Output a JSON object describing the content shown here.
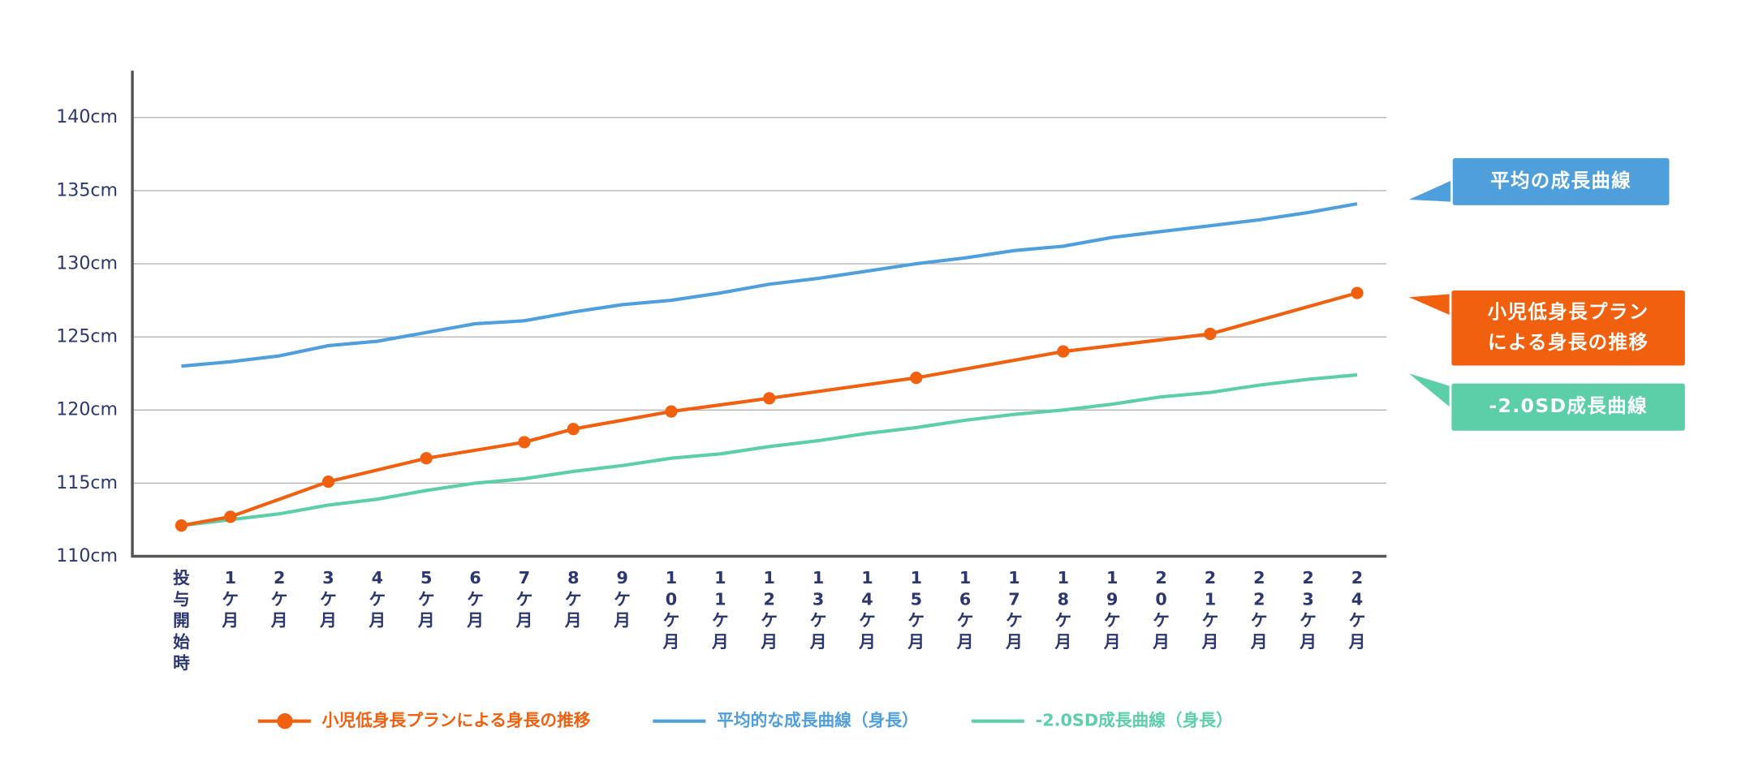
{
  "chart_data": {
    "type": "line",
    "categories": [
      "投与開始時",
      "1ケ月",
      "2ケ月",
      "3ケ月",
      "4ケ月",
      "5ケ月",
      "6ケ月",
      "7ケ月",
      "8ケ月",
      "9ケ月",
      "10ケ月",
      "11ケ月",
      "12ケ月",
      "13ケ月",
      "14ケ月",
      "15ケ月",
      "16ケ月",
      "17ケ月",
      "18ケ月",
      "19ケ月",
      "20ケ月",
      "21ケ月",
      "22ケ月",
      "23ケ月",
      "24ケ月"
    ],
    "x": [
      0,
      1,
      2,
      3,
      4,
      5,
      6,
      7,
      8,
      9,
      10,
      11,
      12,
      13,
      14,
      15,
      16,
      17,
      18,
      19,
      20,
      21,
      22,
      23,
      24
    ],
    "xlim": [
      -1,
      24.6
    ],
    "ylim": [
      110,
      143.2
    ],
    "yticks": [
      {
        "value": 110,
        "label": "110cm"
      },
      {
        "value": 115,
        "label": "115cm"
      },
      {
        "value": 120,
        "label": "120cm"
      },
      {
        "value": 125,
        "label": "125cm"
      },
      {
        "value": 130,
        "label": "130cm"
      },
      {
        "value": 135,
        "label": "135cm"
      },
      {
        "value": 140,
        "label": "140cm"
      }
    ],
    "grid": true,
    "series": [
      {
        "name": "小児低身長プランによる身長の推移",
        "color": "#f0600f",
        "markers": true,
        "x": [
          0,
          1,
          3,
          5,
          7,
          8,
          10,
          12,
          15,
          18,
          21,
          24
        ],
        "values": [
          112.1,
          112.7,
          115.1,
          116.7,
          117.8,
          118.7,
          119.9,
          120.8,
          122.2,
          124.0,
          125.2,
          128.0
        ]
      },
      {
        "name": "平均的な成長曲線（身長）",
        "color": "#4f9fdc",
        "markers": false,
        "values": [
          123.0,
          123.3,
          123.7,
          124.4,
          124.7,
          125.3,
          125.9,
          126.1,
          126.7,
          127.2,
          127.5,
          128.0,
          128.6,
          129.0,
          129.5,
          130.0,
          130.4,
          130.9,
          131.2,
          131.8,
          132.2,
          132.6,
          133.0,
          133.5,
          134.1
        ]
      },
      {
        "name": "-2.0SD成長曲線（身長）",
        "color": "#5ccfa8",
        "markers": false,
        "values": [
          112.1,
          112.5,
          112.9,
          113.5,
          113.9,
          114.5,
          115.0,
          115.3,
          115.8,
          116.2,
          116.7,
          117.0,
          117.5,
          117.9,
          118.4,
          118.8,
          119.3,
          119.7,
          120.0,
          120.4,
          120.9,
          121.2,
          121.7,
          122.1,
          122.4
        ]
      }
    ],
    "annotations": [
      {
        "series": 1,
        "lines": [
          "平均の成長曲線"
        ]
      },
      {
        "series": 0,
        "lines": [
          "小児低身長プラン",
          "による身長の推移"
        ]
      },
      {
        "series": 2,
        "lines": [
          "-2.0SD成長曲線"
        ]
      }
    ]
  }
}
